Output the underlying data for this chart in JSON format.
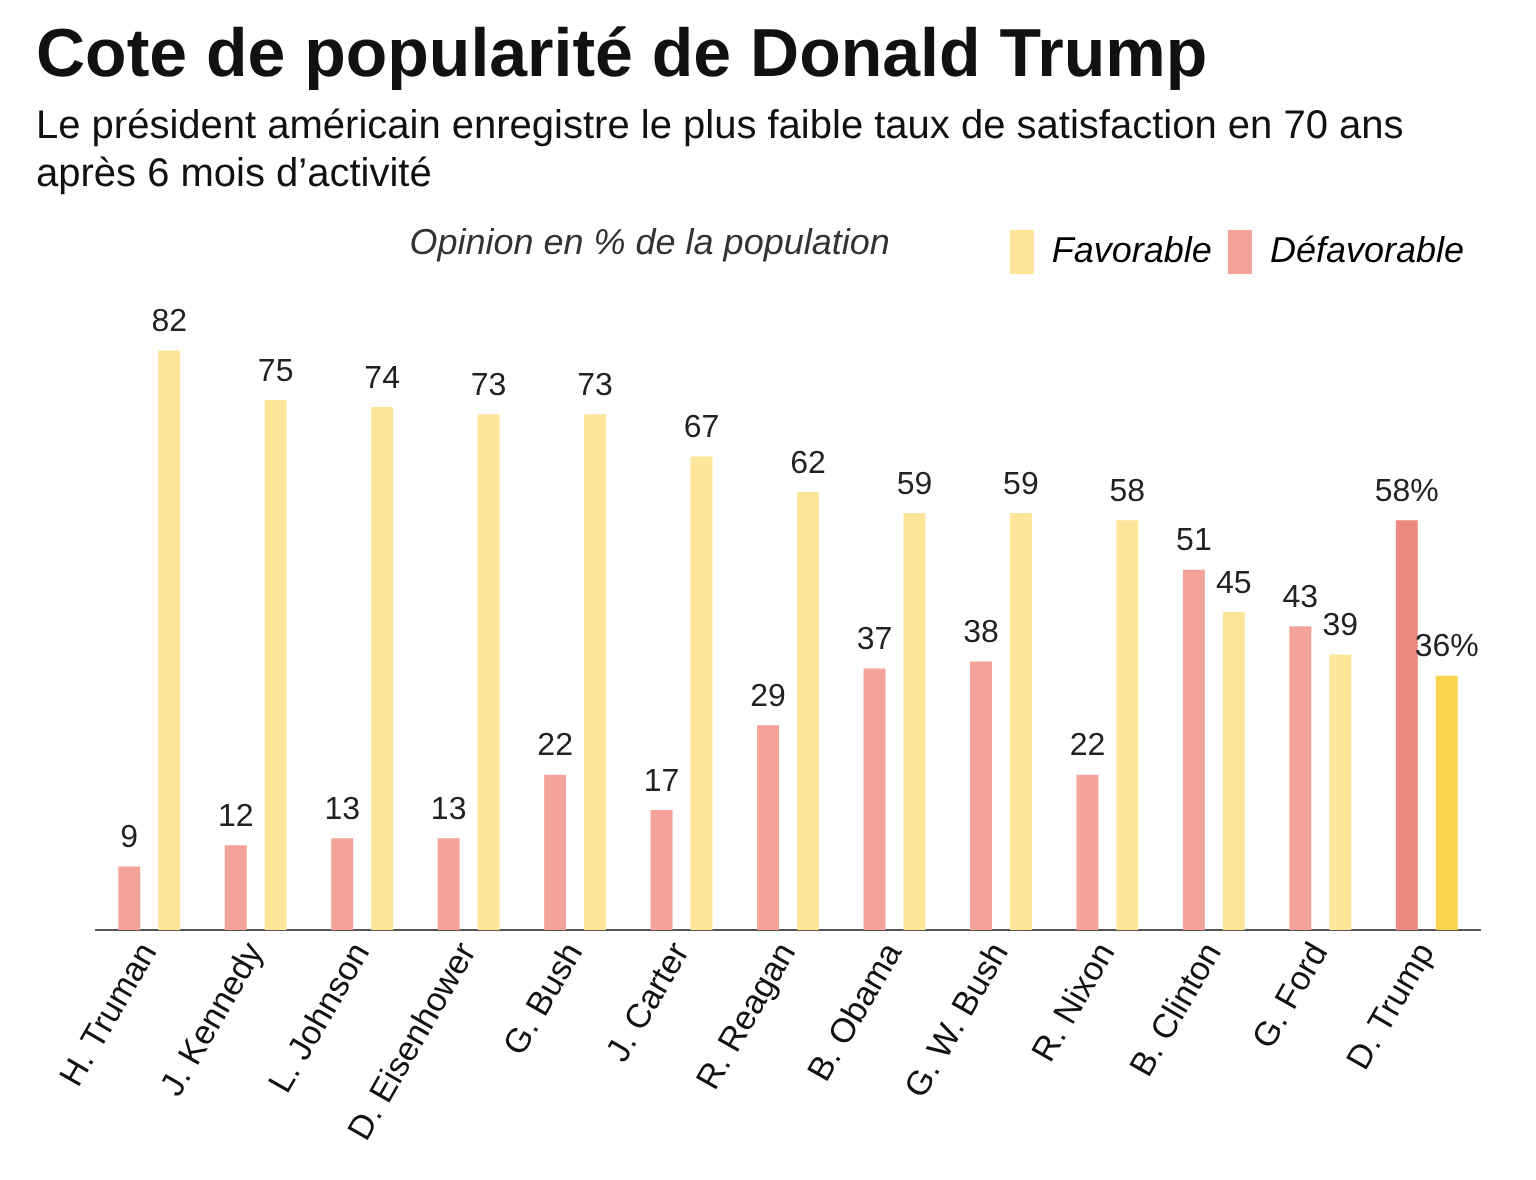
{
  "chart_data": {
    "type": "bar",
    "title": "Cote de popularité de Donald Trump",
    "subtitle": "Le président américain enregistre le plus faible taux de satisfaction en 70 ans après 6 mois d’activité",
    "annotations": [
      "Opinion en % de la population"
    ],
    "categories": [
      "H. Truman",
      "J. Kennedy",
      "L. Johnson",
      "D. Eisenhower",
      "G. Bush",
      "J. Carter",
      "R. Reagan",
      "B. Obama",
      "G. W. Bush",
      "R. Nixon",
      "B. Clinton",
      "G. Ford",
      "D. Trump"
    ],
    "series": [
      {
        "name": "Défavorable",
        "color": "#f4a39a",
        "colors": [
          "#f4a39a",
          "#f4a39a",
          "#f4a39a",
          "#f4a39a",
          "#f4a39a",
          "#f4a39a",
          "#f4a39a",
          "#f4a39a",
          "#f4a39a",
          "#f4a39a",
          "#f4a39a",
          "#f4a39a",
          "#ec8a80"
        ],
        "values": [
          9,
          12,
          13,
          13,
          22,
          17,
          29,
          37,
          38,
          22,
          51,
          43,
          58
        ],
        "value_labels": [
          "9",
          "12",
          "13",
          "13",
          "22",
          "17",
          "29",
          "37",
          "38",
          "22",
          "51",
          "43",
          "58%"
        ]
      },
      {
        "name": "Favorable",
        "color": "#fde69a",
        "colors": [
          "#fde69a",
          "#fde69a",
          "#fde69a",
          "#fde69a",
          "#fde69a",
          "#fde69a",
          "#fde69a",
          "#fde69a",
          "#fde69a",
          "#fde69a",
          "#fde69a",
          "#fde69a",
          "#f8d34c"
        ],
        "values": [
          82,
          75,
          74,
          73,
          73,
          67,
          62,
          59,
          59,
          58,
          45,
          39,
          36
        ],
        "value_labels": [
          "82",
          "75",
          "74",
          "73",
          "73",
          "67",
          "62",
          "59",
          "59",
          "58",
          "45",
          "39",
          "36%"
        ]
      }
    ],
    "legend": "top right",
    "grid": false
  }
}
